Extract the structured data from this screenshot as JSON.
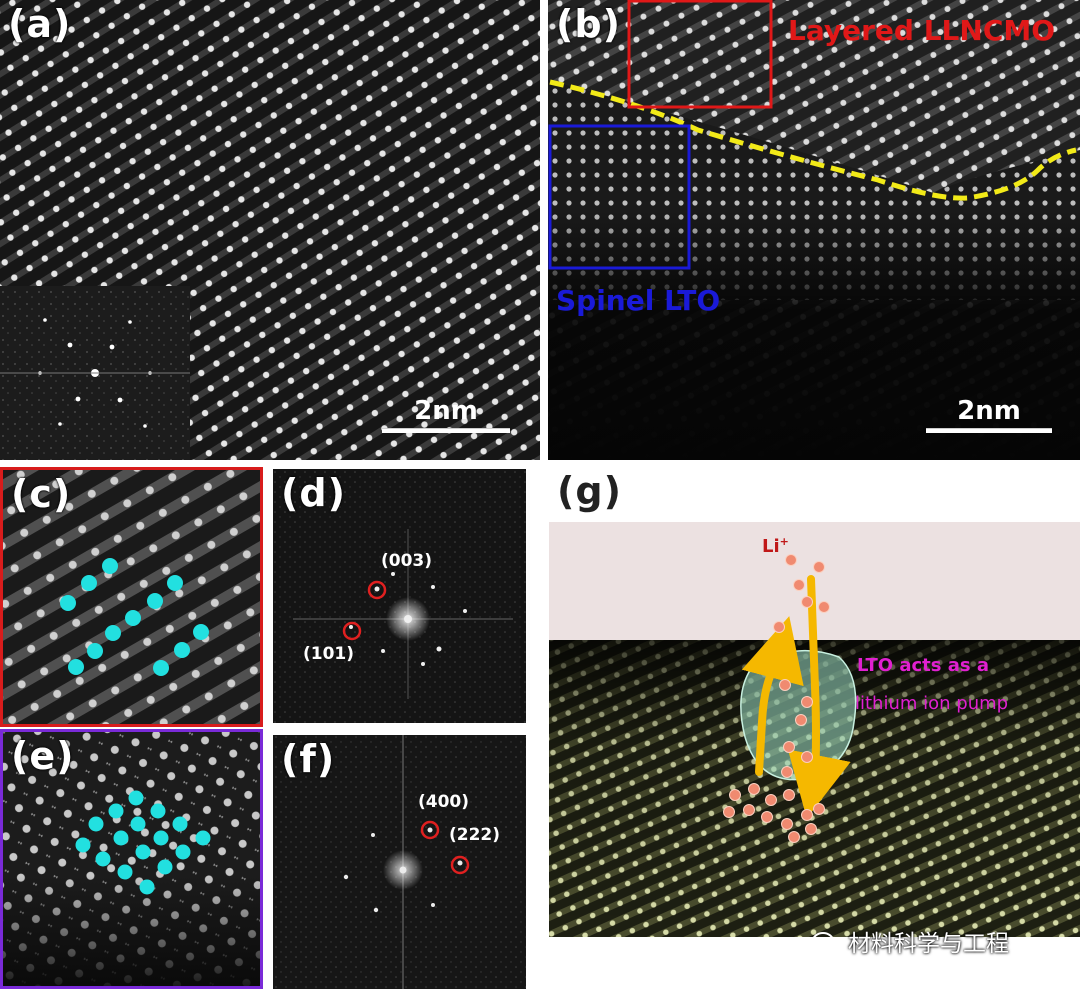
{
  "figure": {
    "panels": [
      {
        "id": "a",
        "label": "(a)",
        "scale_bar": "2nm"
      },
      {
        "id": "b",
        "label": "(b)",
        "scale_bar": "2nm",
        "annotations": {
          "layered": "Layered LLNCMO",
          "spinel": "Spinel LTO"
        }
      },
      {
        "id": "c",
        "label": "(c)"
      },
      {
        "id": "d",
        "label": "(d)",
        "spots": [
          "(003)",
          "(101)"
        ]
      },
      {
        "id": "e",
        "label": "(e)"
      },
      {
        "id": "f",
        "label": "(f)",
        "spots": [
          "(400)",
          "(222)"
        ]
      },
      {
        "id": "g",
        "label": "(g)",
        "ion_label": "Li",
        "ion_charge": "+",
        "caption_lines": [
          "LTO acts as a",
          "lithium ion pump"
        ]
      }
    ],
    "colors": {
      "layered_box": "#e01818",
      "spinel_box": "#1a1ad8",
      "interface_line": "#f2ea18",
      "atom_marker": "#22e0e0",
      "fft_circle": "#e02020",
      "arrow": "#f5b800",
      "ion": "#f08a70",
      "pump_text": "#e020d0",
      "li_text": "#c01818",
      "panel_c_border": "#d81c1c",
      "panel_e_border": "#7a2ad8"
    },
    "watermark": {
      "text": "材料科学与工程",
      "icon": "wechat-icon"
    }
  }
}
